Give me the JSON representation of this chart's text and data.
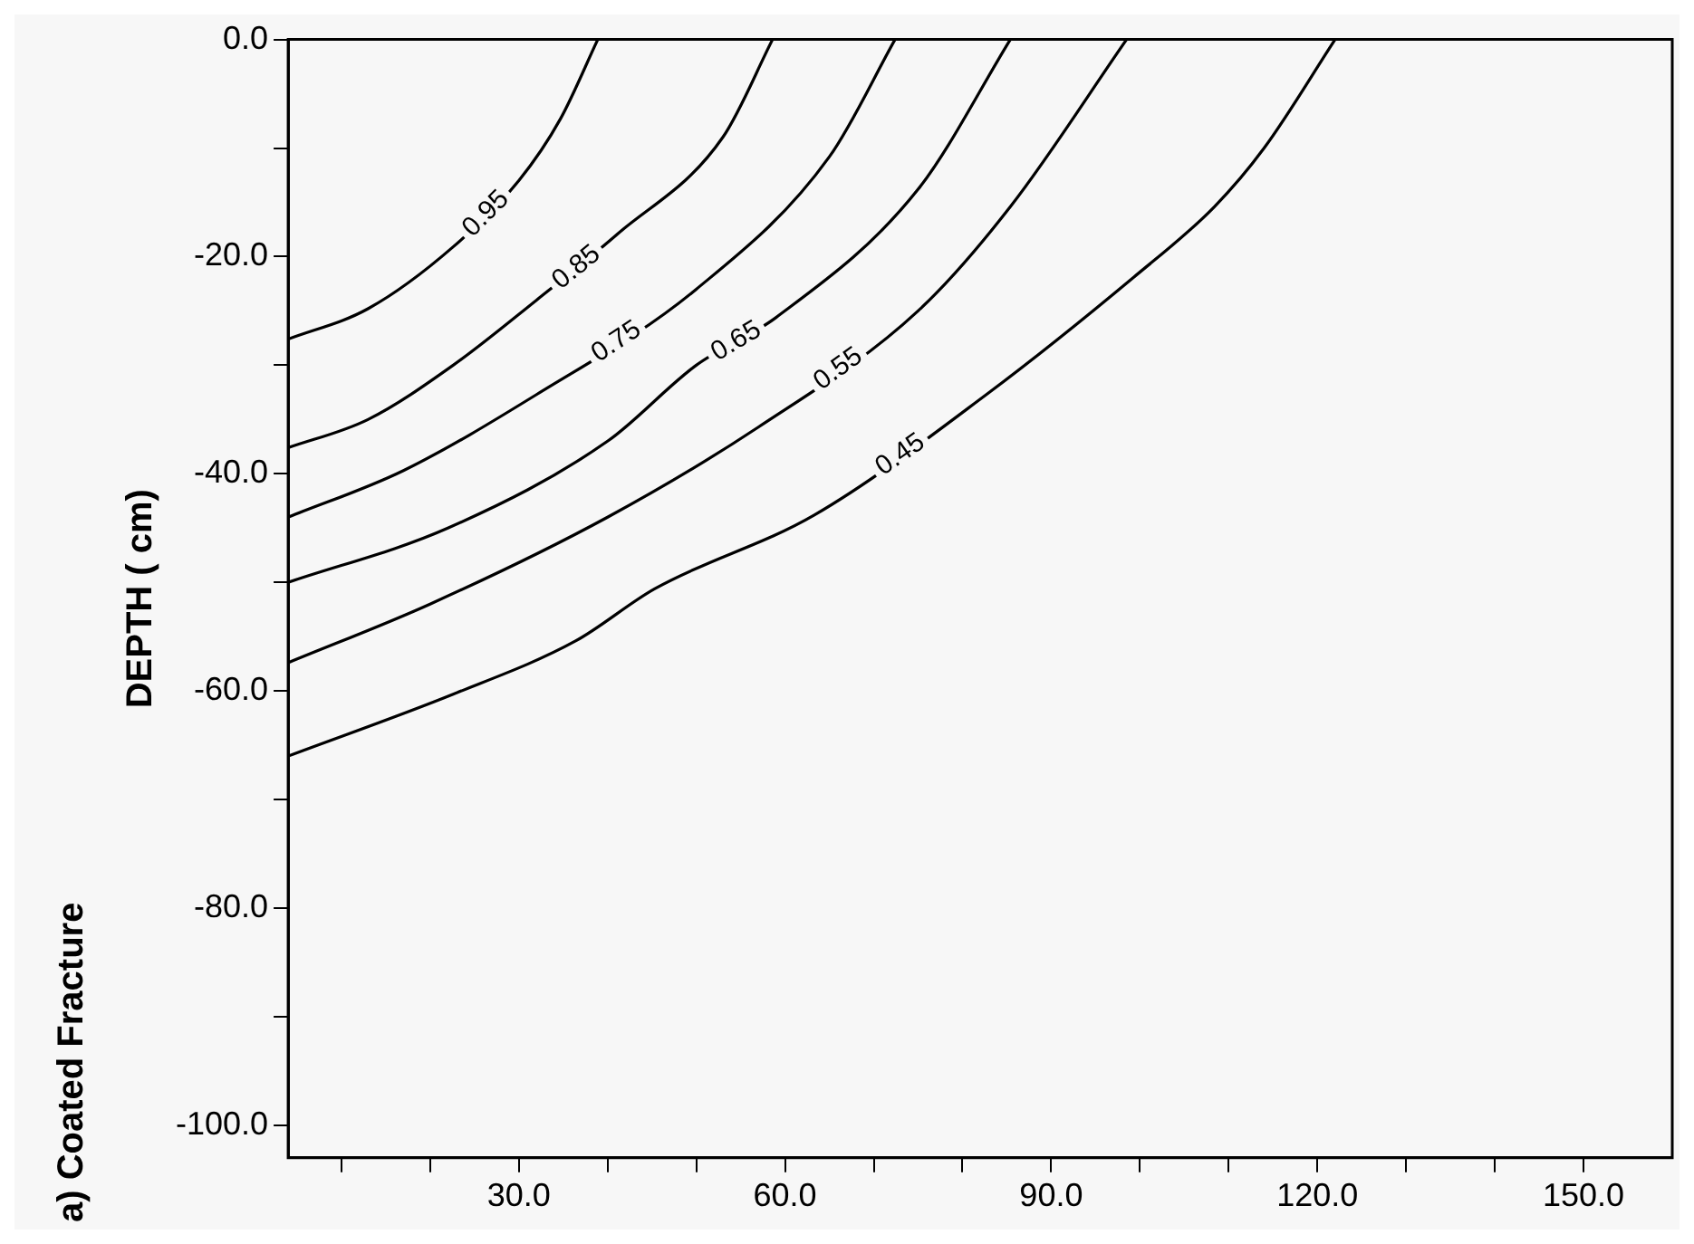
{
  "chart_data": {
    "type": "line",
    "title": "a) Coated Fracture",
    "ylabel": "DEPTH ( cm)",
    "xlim": [
      4,
      160
    ],
    "ylim": [
      -103,
      0
    ],
    "xticks": [
      {
        "value": 10,
        "label": null
      },
      {
        "value": 20,
        "label": null
      },
      {
        "value": 30,
        "label": "30.0"
      },
      {
        "value": 40,
        "label": null
      },
      {
        "value": 50,
        "label": null
      },
      {
        "value": 60,
        "label": "60.0"
      },
      {
        "value": 70,
        "label": null
      },
      {
        "value": 80,
        "label": null
      },
      {
        "value": 90,
        "label": "90.0"
      },
      {
        "value": 100,
        "label": null
      },
      {
        "value": 110,
        "label": null
      },
      {
        "value": 120,
        "label": "120.0"
      },
      {
        "value": 130,
        "label": null
      },
      {
        "value": 140,
        "label": null
      },
      {
        "value": 150,
        "label": "150.0"
      }
    ],
    "yticks": [
      {
        "value": 0,
        "label": "0.0"
      },
      {
        "value": -10,
        "label": null
      },
      {
        "value": -20,
        "label": "-20.0"
      },
      {
        "value": -30,
        "label": null
      },
      {
        "value": -40,
        "label": "-40.0"
      },
      {
        "value": -50,
        "label": null
      },
      {
        "value": -60,
        "label": "-60.0"
      },
      {
        "value": -70,
        "label": null
      },
      {
        "value": -80,
        "label": "-80.0"
      },
      {
        "value": -90,
        "label": null
      },
      {
        "value": -100,
        "label": "-100.0"
      }
    ],
    "grid": false,
    "legend": false,
    "marker": "none",
    "line_style": "solid",
    "series": [
      {
        "name": "0.95",
        "color": "#000000",
        "x": [
          4,
          13,
          22.6,
          30,
          34.7,
          38.9
        ],
        "values": [
          -27.6,
          -24.8,
          -19.1,
          -13,
          -7.3,
          0
        ]
      },
      {
        "name": "0.85",
        "color": "#000000",
        "x": [
          4,
          13,
          22.6,
          32,
          41,
          53,
          58.6
        ],
        "values": [
          -37.6,
          -35,
          -30,
          -24,
          -18,
          -9,
          0
        ]
      },
      {
        "name": "0.75",
        "color": "#000000",
        "x": [
          4,
          17,
          32,
          50,
          65,
          72.4
        ],
        "values": [
          -44,
          -39.7,
          -32.7,
          -23,
          -10.8,
          0
        ]
      },
      {
        "name": "0.65",
        "color": "#000000",
        "x": [
          4,
          22,
          40,
          50,
          59,
          75,
          85.4
        ],
        "values": [
          -50,
          -45,
          -37,
          -30,
          -25.6,
          -13.8,
          0
        ]
      },
      {
        "name": "0.55",
        "color": "#000000",
        "x": [
          4,
          20,
          40,
          57,
          75,
          85.4,
          98.5
        ],
        "values": [
          -57.4,
          -52,
          -44,
          -35.7,
          -25,
          -15.4,
          0
        ]
      },
      {
        "name": "0.45",
        "color": "#000000",
        "x": [
          4,
          22.6,
          36.4,
          45.3,
          63.3,
          82.7,
          99.3,
          108.4,
          114,
          122
        ],
        "values": [
          -66,
          -60.3,
          -55.4,
          -50.6,
          -43.8,
          -32.7,
          -21.9,
          -15.4,
          -10,
          0
        ]
      }
    ]
  }
}
